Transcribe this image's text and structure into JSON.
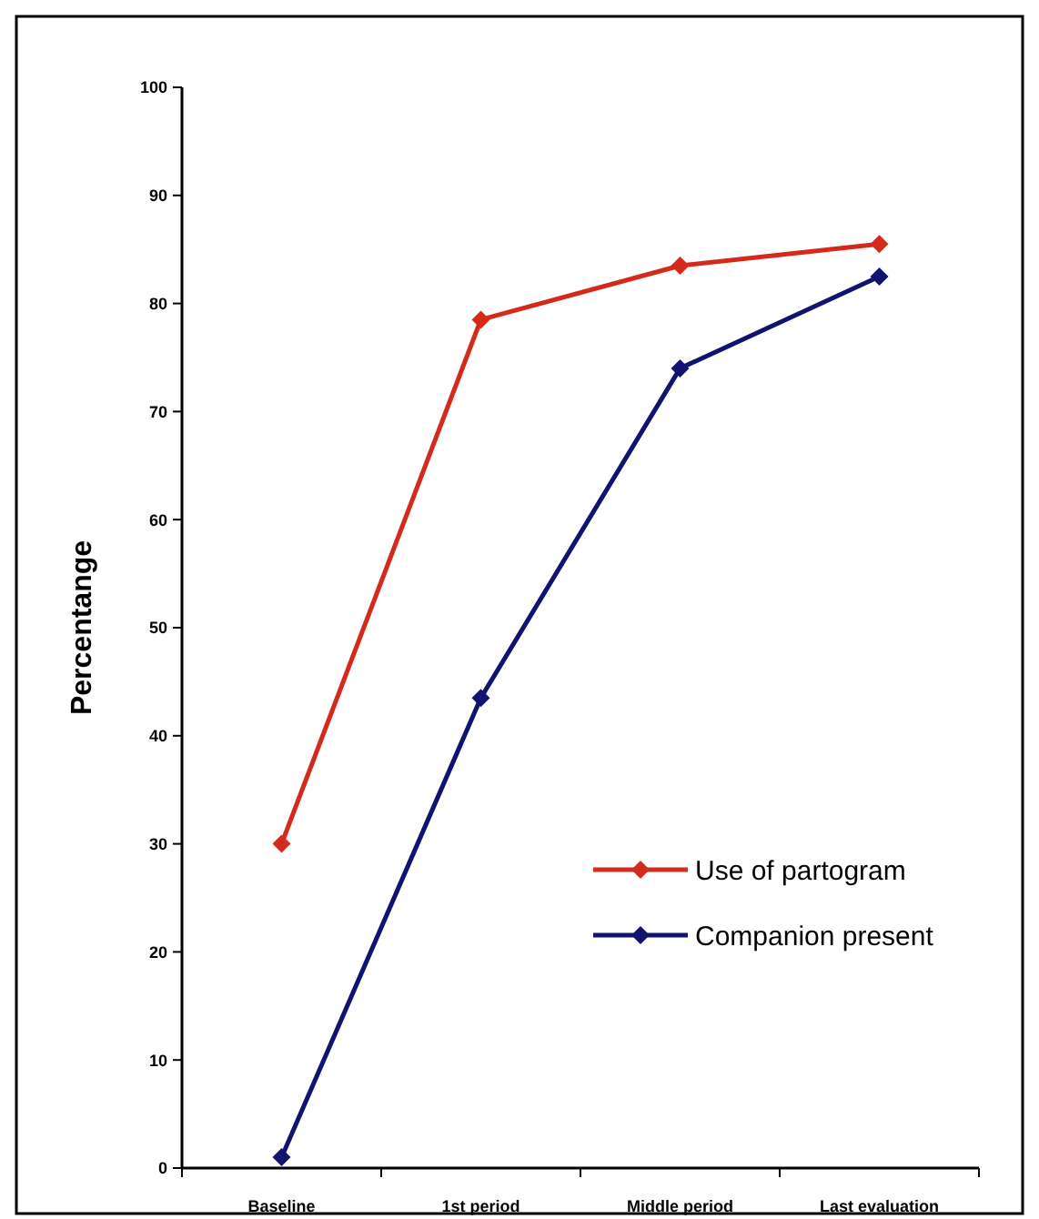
{
  "chart_data": {
    "type": "line",
    "ylabel": "Percentange",
    "categories": [
      "Baseline",
      "1st period",
      "Middle period",
      "Last evaluation"
    ],
    "series": [
      {
        "name": "Use of partogram",
        "color": "#d42a1c",
        "values": [
          30,
          78.5,
          83.5,
          85.5
        ]
      },
      {
        "name": "Companion present",
        "color": "#101470",
        "values": [
          1,
          43.5,
          74,
          82.5
        ]
      }
    ],
    "ylim": [
      0,
      100
    ],
    "yticks": [
      0,
      10,
      20,
      30,
      40,
      50,
      60,
      70,
      80,
      90,
      100
    ],
    "grid": false,
    "legend": "right",
    "marker": "diamond",
    "line_style": "solid"
  }
}
